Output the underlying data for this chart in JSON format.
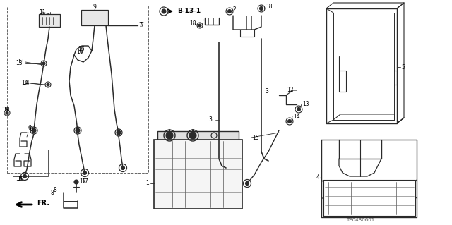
{
  "bg_color": "#ffffff",
  "line_color": "#2a2a2a",
  "diagram_code": "TE04B0601",
  "fig_w": 6.4,
  "fig_h": 3.19,
  "dpi": 100
}
